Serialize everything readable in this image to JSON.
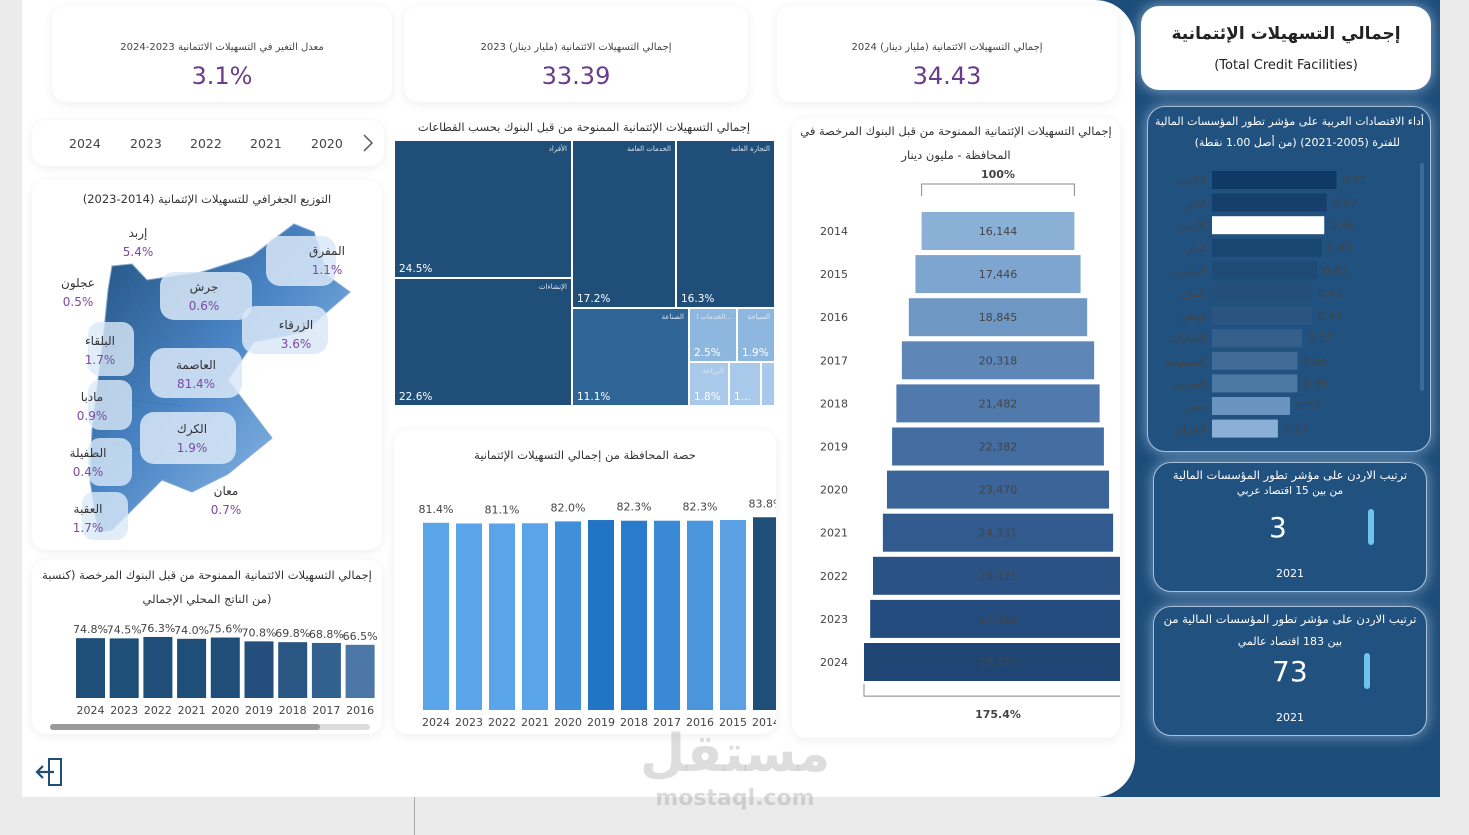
{
  "kpis": [
    {
      "title": "إجمالي التسهيلات الائتمانية (مليار دينار) 2024",
      "value": "34.43"
    },
    {
      "title": "إجمالي التسهيلات الائتمانية (مليار دينار) 2023",
      "value": "33.39"
    },
    {
      "title": "معدل التغير في التسهيلات الائتمانية 2023-2024",
      "value": "3.1%"
    }
  ],
  "year_slicer": {
    "years": [
      "2024",
      "2023",
      "2022",
      "2021",
      "2020"
    ],
    "next_icon": "chevron-right-icon"
  },
  "map": {
    "title": "التوزيع الجغرافي للتسهيلات الإئتمانية (2014-2023)",
    "labels": [
      {
        "name": "إربد",
        "pct": "5.4%"
      },
      {
        "name": "المفرق",
        "pct": "1.1%"
      },
      {
        "name": "عجلون",
        "pct": "0.5%"
      },
      {
        "name": "جرش",
        "pct": "0.6%"
      },
      {
        "name": "الزرقاء",
        "pct": "3.6%"
      },
      {
        "name": "البلقاء",
        "pct": "1.7%"
      },
      {
        "name": "العاصمة",
        "pct": "81.4%"
      },
      {
        "name": "مادبا",
        "pct": "0.9%"
      },
      {
        "name": "الكرك",
        "pct": "1.9%"
      },
      {
        "name": "الطفيلة",
        "pct": "0.4%"
      },
      {
        "name": "معان",
        "pct": "0.7%"
      },
      {
        "name": "العقبة",
        "pct": "1.7%"
      }
    ]
  },
  "treemap": {
    "title": "إجمالي التسهيلات الإئتمانية الممنوحة من قبل البنوك بحسب القطاعات",
    "tiles": [
      {
        "label": "الأفراد",
        "pct": "24.5%",
        "color": "#1f4e79"
      },
      {
        "label": "الخدمات العامة",
        "pct": "17.2%",
        "color": "#1f4e79"
      },
      {
        "label": "التجارة العامة",
        "pct": "16.3%",
        "color": "#1f4e79"
      },
      {
        "label": "الإنشاءات",
        "pct": "22.6%",
        "color": "#1f4e79"
      },
      {
        "label": "الصناعة",
        "pct": "11.1%",
        "color": "#2e6496"
      },
      {
        "label": "الخدمات ا...",
        "pct": "2.5%",
        "color": "#8eb7df"
      },
      {
        "label": "السياحة",
        "pct": "1.9%",
        "color": "#8eb7df"
      },
      {
        "label": "الزراعة",
        "pct": "1.8%",
        "color": "#a9c9ea"
      },
      {
        "label": "",
        "pct": "1...",
        "color": "#a9c9ea"
      },
      {
        "label": "",
        "pct": "",
        "color": "#a9c9ea"
      }
    ]
  },
  "funnel": {
    "title_line1": "إجمالي التسهيلات الإئتمانية الممنوحة من قبل البنوك المرخصة في",
    "title_line2": "المحافظة - مليون دينار",
    "top_pct": "100%",
    "bottom_pct": "175.4%"
  },
  "gdp_chart": {
    "title_line1": "إجمالي التسهيلات الائتمانية الممنوحة من قبل البنوك المرخصة (كنسبة",
    "title_line2": "من الناتج المحلي الإجمالي)"
  },
  "share_chart": {
    "title": "حصة المحافظة من إجمالي التسهيلات الإئتمانية"
  },
  "chart_data": [
    {
      "type": "bar",
      "title": "إجمالي التسهيلات الإئتمانية الممنوحة من قبل البنوك المرخصة في المحافظة - مليون دينار",
      "orientation": "horizontal-funnel",
      "categories": [
        "2014",
        "2015",
        "2016",
        "2017",
        "2018",
        "2019",
        "2020",
        "2021",
        "2022",
        "2023",
        "2024"
      ],
      "values": [
        16144,
        17446,
        18845,
        20318,
        21482,
        22382,
        23470,
        24331,
        26421,
        27018,
        28321
      ],
      "value_labels": [
        "16,144",
        "17,446",
        "18,845",
        "20,318",
        "21,482",
        "22,382",
        "23,470",
        "24,331",
        "26,421",
        "27,018",
        "28,321"
      ],
      "colors": [
        "#8ab0d6",
        "#7ea5cf",
        "#6f97c4",
        "#5e87b8",
        "#5079ac",
        "#446da2",
        "#3b6498",
        "#315a8e",
        "#2a5285",
        "#244b7d",
        "#1f4575"
      ]
    },
    {
      "type": "bar",
      "title": "إجمالي التسهيلات الائتمانية الممنوحة من قبل البنوك المرخصة (كنسبة من الناتج المحلي الإجمالي)",
      "categories": [
        "2024",
        "2023",
        "2022",
        "2021",
        "2020",
        "2019",
        "2018",
        "2017",
        "2016"
      ],
      "values": [
        74.8,
        74.5,
        76.3,
        74.0,
        75.6,
        70.8,
        69.8,
        68.8,
        66.5
      ],
      "value_labels": [
        "74.8%",
        "74.5%",
        "76.3%",
        "74.0%",
        "75.6%",
        "70.8%",
        "69.8%",
        "68.8%",
        "66.5%"
      ],
      "ylim": [
        0,
        100
      ],
      "colors": [
        "#1f4e79",
        "#1f4e79",
        "#1f4e79",
        "#1f4e79",
        "#1f4e79",
        "#244f7d",
        "#2a5684",
        "#33618f",
        "#4d77a6"
      ]
    },
    {
      "type": "bar",
      "title": "حصة المحافظة من إجمالي التسهيلات الإئتمانية",
      "categories": [
        "2024",
        "2023",
        "2022",
        "2021",
        "2020",
        "2019",
        "2018",
        "2017",
        "2016",
        "2015",
        "2014"
      ],
      "values": [
        81.4,
        81.1,
        81.1,
        81.2,
        82.0,
        82.6,
        82.3,
        82.3,
        82.3,
        82.6,
        83.8
      ],
      "value_labels": [
        "81.4%",
        "",
        "81.1%",
        "",
        "82.0%",
        "",
        "82.3%",
        "",
        "82.3%",
        "",
        "83.8%"
      ],
      "ylim": [
        0,
        100
      ],
      "colors": [
        "#5aa4ea",
        "#5aa4ea",
        "#5aa4ea",
        "#5aa4ea",
        "#3f8fdb",
        "#2274c5",
        "#2a7bcb",
        "#3a89d6",
        "#4b95dc",
        "#5aa0e2",
        "#1f4e79"
      ]
    },
    {
      "type": "bar",
      "title": "أداء الاقتصادات العربية على مؤشر تطور المؤسسات المالية للفترة (2005-2021) (من أصل 1.00 نقطة)",
      "orientation": "horizontal",
      "categories": [
        "الكويت",
        "قطر",
        "الأردن",
        "لبنان",
        "المغرب",
        "عُمان",
        "تونس",
        "الإمارات",
        "السعودية",
        "البحرين",
        "مصر",
        "الجزائر"
      ],
      "values": [
        0.51,
        0.47,
        0.46,
        0.45,
        0.43,
        0.41,
        0.41,
        0.37,
        0.35,
        0.35,
        0.32,
        0.27
      ],
      "value_labels": [
        "0.51",
        "0.47",
        "0.46",
        "0.45",
        "0.43",
        "0.41",
        "0.41",
        "0.37",
        "0.35",
        "0.35",
        "0.32",
        "0.27"
      ],
      "highlight": "الأردن",
      "colors": [
        "#0f3a66",
        "#163f6b",
        "#ffffff",
        "#1a4672",
        "#1e4a76",
        "#244f7b",
        "#2a5581",
        "#345f8b",
        "#406b97",
        "#4d78a3",
        "#6a93bf",
        "#8ab0d8"
      ]
    }
  ],
  "sidebar": {
    "header_title": "إجمالي التسهيلات الإئتمانية",
    "header_sub": "(Total Credit Facilities)",
    "arab_index": {
      "title_line1": "أداء الاقتصادات العربية على مؤشر تطور المؤسسات المالية",
      "title_line2": "للفترة (2005-2021) (من أصل 1.00 نقطة)"
    },
    "rank_arab": {
      "title_line1": "ترتيب الاردن على مؤشر تطور المؤسسات المالية",
      "title_line2": "من بين 15 اقتصاد عربي",
      "value": "3",
      "year": "2021"
    },
    "rank_world": {
      "title_line1": "ترتيب الاردن على مؤشر تطور المؤسسات المالية من",
      "title_line2": "بين 183 اقتصاد عالمي",
      "value": "73",
      "year": "2021"
    }
  },
  "watermark": {
    "arabic": "مستقل",
    "latin": "mostaql.com"
  },
  "exit_icon": "exit-icon"
}
